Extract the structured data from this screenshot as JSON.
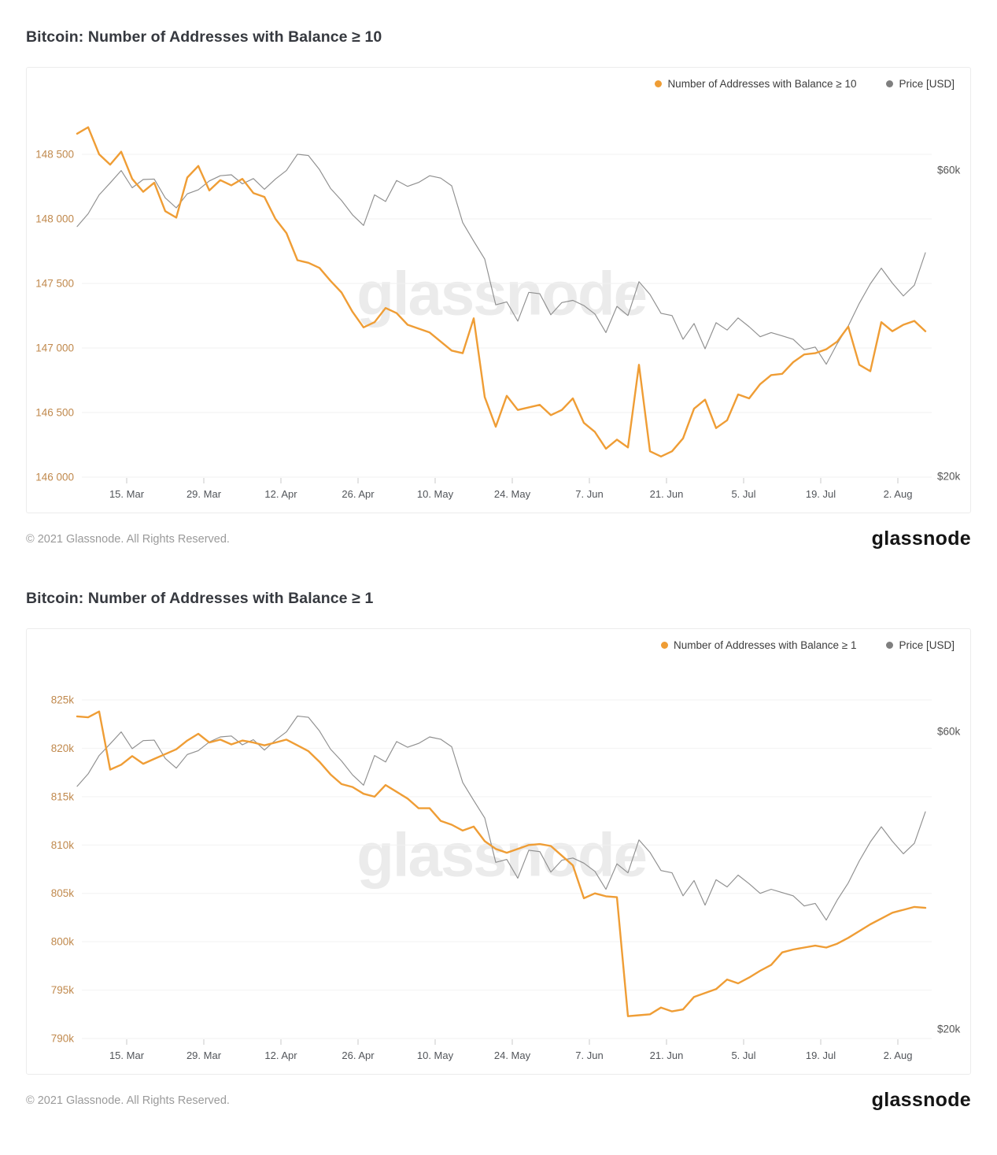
{
  "watermark": "glassnode",
  "footer": {
    "copyright": "© 2021 Glassnode. All Rights Reserved.",
    "logo": "glassnode"
  },
  "colors": {
    "orange_line": "#ef9d35",
    "orange_axis_text": "#c0894d",
    "price_line": "#8f8f8f",
    "price_dot": "#7f7f7f",
    "grid": "#f2f2f2",
    "tick_mark": "#c9c9c9",
    "date_text": "#52555a",
    "price_text": "#555555",
    "watermark_text": "#ebebeb"
  },
  "chart_data": [
    {
      "type": "line",
      "title": "Bitcoin: Number of Addresses with Balance ≥ 10",
      "xlabel": "",
      "ylabel": "",
      "grid": "horizontal",
      "legend_position": "top-right",
      "x_tick_labels": [
        "15. Mar",
        "29. Mar",
        "12. Apr",
        "26. Apr",
        "10. May",
        "24. May",
        "7. Jun",
        "21. Jun",
        "5. Jul",
        "19. Jul",
        "2. Aug"
      ],
      "x_tick_days": [
        9,
        23,
        37,
        51,
        65,
        79,
        93,
        107,
        121,
        135,
        149
      ],
      "x_range_days": [
        0,
        154
      ],
      "left_axis": {
        "ticks": [
          "148 500",
          "148 000",
          "147 500",
          "147 000",
          "146 500",
          "146 000"
        ],
        "tick_values": [
          148500,
          148000,
          147500,
          147000,
          146500,
          146000
        ],
        "ylim": [
          146000,
          148750
        ]
      },
      "right_axis": {
        "ticks": [
          "$60k",
          "$20k"
        ],
        "tick_values": [
          60,
          20
        ],
        "unit": "USD thousands",
        "scale": "log",
        "ylim": [
          20,
          60
        ]
      },
      "series": [
        {
          "name": "Number of Addresses with Balance ≥ 10",
          "axis": "left",
          "color": "#ef9d35",
          "values": [
            148660,
            148710,
            148500,
            148420,
            148520,
            148310,
            148210,
            148280,
            148060,
            148010,
            148320,
            148410,
            148220,
            148300,
            148260,
            148310,
            148200,
            148170,
            148000,
            147890,
            147680,
            147660,
            147620,
            147520,
            147430,
            147280,
            147160,
            147200,
            147310,
            147270,
            147180,
            147150,
            147120,
            147050,
            146980,
            146960,
            147230,
            146620,
            146390,
            146630,
            146520,
            146540,
            146560,
            146480,
            146520,
            146610,
            146420,
            146350,
            146220,
            146290,
            146230,
            146870,
            146200,
            146160,
            146200,
            146300,
            146530,
            146600,
            146380,
            146440,
            146640,
            146610,
            146720,
            146790,
            146800,
            146890,
            146950,
            146960,
            146990,
            147050,
            147165,
            146870,
            146820,
            147200,
            147130,
            147180,
            147210,
            147130
          ]
        },
        {
          "name": "Price [USD]",
          "axis": "right",
          "color": "#8f8f8f",
          "values": [
            49.0,
            51.3,
            54.9,
            57.3,
            59.9,
            56.3,
            58.0,
            58.1,
            54.3,
            52.4,
            55.1,
            55.9,
            57.7,
            58.8,
            59.0,
            57.1,
            58.2,
            56.0,
            58.1,
            59.9,
            63.5,
            63.2,
            60.1,
            56.2,
            53.8,
            51.1,
            49.2,
            54.9,
            53.6,
            57.8,
            56.6,
            57.4,
            58.8,
            58.3,
            56.7,
            49.7,
            46.5,
            43.6,
            37.0,
            37.4,
            34.9,
            38.7,
            38.5,
            35.7,
            37.3,
            37.6,
            36.9,
            35.8,
            33.5,
            36.8,
            35.6,
            40.2,
            38.4,
            35.9,
            35.6,
            32.7,
            34.6,
            31.6,
            34.7,
            33.8,
            35.3,
            34.2,
            33.0,
            33.5,
            33.1,
            32.7,
            31.5,
            31.8,
            29.9,
            32.2,
            34.3,
            37.2,
            39.9,
            42.2,
            40.0,
            38.2,
            39.7,
            44.6
          ]
        }
      ]
    },
    {
      "type": "line",
      "title": "Bitcoin: Number of Addresses with Balance ≥ 1",
      "xlabel": "",
      "ylabel": "",
      "grid": "horizontal",
      "legend_position": "top-right",
      "x_tick_labels": [
        "15. Mar",
        "29. Mar",
        "12. Apr",
        "26. Apr",
        "10. May",
        "24. May",
        "7. Jun",
        "21. Jun",
        "5. Jul",
        "19. Jul",
        "2. Aug"
      ],
      "x_tick_days": [
        9,
        23,
        37,
        51,
        65,
        79,
        93,
        107,
        121,
        135,
        149
      ],
      "x_range_days": [
        0,
        154
      ],
      "left_axis": {
        "ticks": [
          "825k",
          "820k",
          "815k",
          "810k",
          "805k",
          "800k",
          "795k",
          "790k"
        ],
        "tick_values": [
          825,
          820,
          815,
          810,
          805,
          800,
          795,
          790
        ],
        "unit": "thousand addresses",
        "ylim": [
          790,
          825
        ]
      },
      "right_axis": {
        "ticks": [
          "$60k",
          "$20k"
        ],
        "tick_values": [
          60,
          20
        ],
        "unit": "USD thousands",
        "scale": "log",
        "ylim": [
          20,
          60
        ]
      },
      "series": [
        {
          "name": "Number of Addresses with Balance ≥ 1",
          "axis": "left",
          "color": "#ef9d35",
          "values": [
            823.3,
            823.2,
            823.8,
            817.8,
            818.3,
            819.2,
            818.4,
            818.9,
            819.4,
            819.9,
            820.8,
            821.5,
            820.6,
            820.9,
            820.4,
            820.8,
            820.6,
            820.3,
            820.6,
            820.9,
            820.3,
            819.7,
            818.6,
            817.3,
            816.3,
            816.0,
            815.3,
            815.0,
            816.2,
            815.5,
            814.8,
            813.8,
            813.8,
            812.5,
            812.1,
            811.5,
            811.9,
            810.4,
            809.6,
            809.2,
            809.6,
            810.0,
            810.1,
            809.9,
            808.9,
            807.9,
            804.5,
            805.0,
            804.7,
            804.6,
            792.3,
            792.4,
            792.5,
            793.2,
            792.8,
            793.0,
            794.3,
            794.7,
            795.1,
            796.1,
            795.7,
            796.3,
            797.0,
            797.6,
            798.9,
            799.2,
            799.4,
            799.6,
            799.4,
            799.8,
            800.4,
            801.1,
            801.8,
            802.4,
            803.0,
            803.3,
            803.6,
            803.5
          ]
        },
        {
          "name": "Price [USD]",
          "axis": "right",
          "color": "#8f8f8f",
          "values": [
            49.0,
            51.3,
            54.9,
            57.3,
            59.9,
            56.3,
            58.0,
            58.1,
            54.3,
            52.4,
            55.1,
            55.9,
            57.7,
            58.8,
            59.0,
            57.1,
            58.2,
            56.0,
            58.1,
            59.9,
            63.5,
            63.2,
            60.1,
            56.2,
            53.8,
            51.1,
            49.2,
            54.9,
            53.6,
            57.8,
            56.6,
            57.4,
            58.8,
            58.3,
            56.7,
            49.7,
            46.5,
            43.6,
            37.0,
            37.4,
            34.9,
            38.7,
            38.5,
            35.7,
            37.3,
            37.6,
            36.9,
            35.8,
            33.5,
            36.8,
            35.6,
            40.2,
            38.4,
            35.9,
            35.6,
            32.7,
            34.6,
            31.6,
            34.7,
            33.8,
            35.3,
            34.2,
            33.0,
            33.5,
            33.1,
            32.7,
            31.5,
            31.8,
            29.9,
            32.2,
            34.3,
            37.2,
            39.9,
            42.2,
            40.0,
            38.2,
            39.7,
            44.6
          ]
        }
      ]
    }
  ]
}
